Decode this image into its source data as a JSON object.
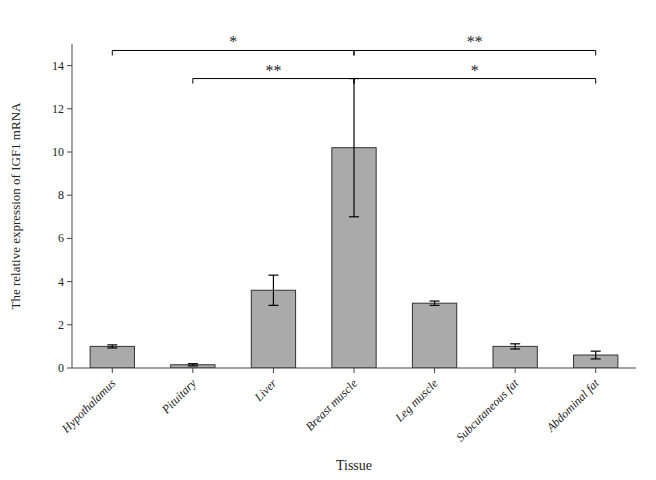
{
  "chart_data": {
    "type": "bar",
    "categories": [
      "Hypothalamus",
      "Pituitary",
      "Liver",
      "Breast muscle",
      "Leg muscle",
      "Subcutaneous fat",
      "Abdominal fat"
    ],
    "values": [
      1.0,
      0.15,
      3.6,
      10.2,
      3.0,
      1.0,
      0.6
    ],
    "errors": [
      0.07,
      0.05,
      0.7,
      3.2,
      0.1,
      0.12,
      0.18
    ],
    "color": "#aaaaaa",
    "xlabel": "Tissue",
    "ylabel": "The relative expression of IGF1 mRNA",
    "ylim": [
      0,
      15
    ],
    "yticks": [
      0,
      2,
      4,
      6,
      8,
      10,
      12,
      14
    ],
    "grid": false,
    "annotations": [
      {
        "text": "*",
        "from": "Hypothalamus",
        "to": "Breast muscle",
        "y": 14.7
      },
      {
        "text": "**",
        "from": "Breast muscle",
        "to": "Abdominal fat",
        "y": 14.7
      },
      {
        "text": "**",
        "from": "Pituitary",
        "to": "Breast muscle",
        "y": 13.4
      },
      {
        "text": "*",
        "from": "Breast muscle",
        "to": "Abdominal fat",
        "y": 13.4
      }
    ]
  }
}
